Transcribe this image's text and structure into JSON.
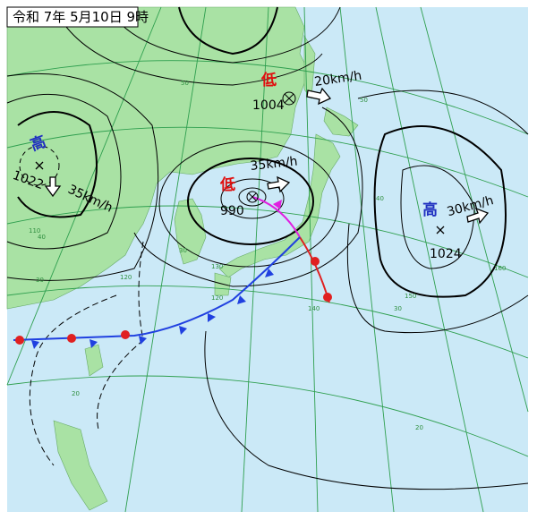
{
  "header": {
    "title": "令和 7年 5月10日 9時"
  },
  "systems": [
    {
      "symbol": "低",
      "pressure": "1004",
      "speed": "20km/h"
    },
    {
      "symbol": "低",
      "pressure": "990",
      "speed": "35km/h"
    },
    {
      "symbol": "高",
      "pressure": "1022",
      "speed": "35km/h"
    },
    {
      "symbol": "高",
      "pressure": "1024",
      "speed": "30km/h"
    }
  ],
  "grid_labels": [
    "50",
    "50",
    "40",
    "40",
    "30",
    "30",
    "30",
    "20",
    "20",
    "110",
    "120",
    "120",
    "130",
    "140",
    "150",
    "160"
  ]
}
